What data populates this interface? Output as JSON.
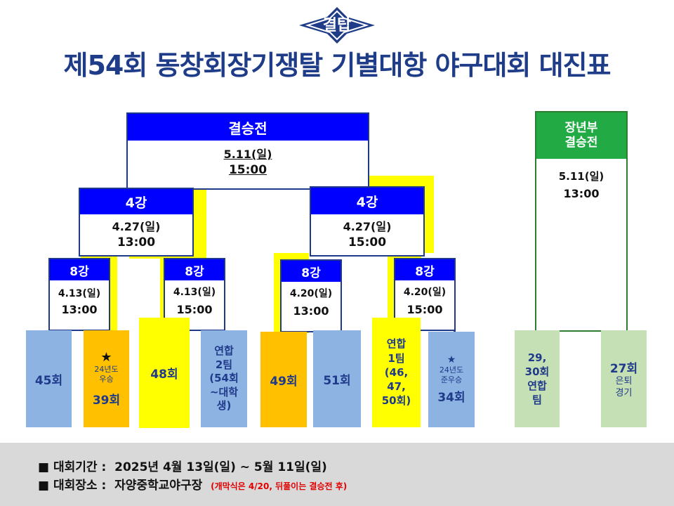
{
  "logo": {
    "text": "결탑",
    "icon": "star-emblem"
  },
  "title": "제54회 동창회장기쟁탈 기별대항 야구대회 대진표",
  "final": {
    "label": "결승전",
    "date": "5.11(일)",
    "time": "15:00"
  },
  "semis": [
    {
      "label": "4강",
      "date": "4.27(일)",
      "time": "13:00"
    },
    {
      "label": "4강",
      "date": "4.27(일)",
      "time": "15:00"
    }
  ],
  "quarters": [
    {
      "label": "8강",
      "date": "4.13(일)",
      "time": "13:00"
    },
    {
      "label": "8강",
      "date": "4.13(일)",
      "time": "15:00"
    },
    {
      "label": "8강",
      "date": "4.20(일)",
      "time": "13:00"
    },
    {
      "label": "8강",
      "date": "4.20(일)",
      "time": "15:00"
    }
  ],
  "veteran": {
    "label_line1": "장년부",
    "label_line2": "결승전",
    "date": "5.11(일)",
    "time": "13:00"
  },
  "teams": [
    {
      "name": "45회"
    },
    {
      "star": "★",
      "note_line1": "24년도",
      "note_line2": "우승",
      "name": "39회"
    },
    {
      "name": "48회"
    },
    {
      "lines": [
        "연합",
        "2팀",
        "(54회",
        "~대학",
        "생)"
      ]
    },
    {
      "name": "49회"
    },
    {
      "name": "51회"
    },
    {
      "lines": [
        "연합",
        "1팀",
        "(46,",
        "47,",
        "50회)"
      ]
    },
    {
      "star": "★",
      "note_line1": "24년도",
      "note_line2": "준우승",
      "name": "34회"
    },
    {
      "lines": [
        "29,",
        "30회",
        "연합",
        "팀"
      ]
    },
    {
      "name": "27회",
      "note_line1": "은퇴",
      "note_line2": "경기"
    }
  ],
  "footer": {
    "period_label": "■  대회기간  :",
    "period_value": "2025년 4월 13일(일) ~ 5월 11일(일)",
    "venue_label": "■  대회장소  :",
    "venue_value": "자양중학교야구장",
    "venue_note": "(개막식은 4/20, 뒤풀이는 결승전 후)"
  },
  "colors": {
    "title": "#1f3c88",
    "header_blue": "#0000ff",
    "header_green": "#22aa44",
    "winner_highlight": "#ffff00",
    "team_blue": "#8db3e2",
    "team_orange": "#ffc000",
    "team_green": "#c5e0b4",
    "note_red": "#e00000"
  }
}
